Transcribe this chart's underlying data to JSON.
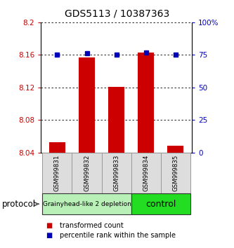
{
  "title": "GDS5113 / 10387363",
  "samples": [
    "GSM999831",
    "GSM999832",
    "GSM999833",
    "GSM999834",
    "GSM999835"
  ],
  "bar_values": [
    8.053,
    8.157,
    8.121,
    8.163,
    8.048
  ],
  "dot_values": [
    75,
    76,
    75,
    77,
    75
  ],
  "ylim_left": [
    8.04,
    8.2
  ],
  "ylim_right": [
    0,
    100
  ],
  "yticks_left": [
    8.04,
    8.08,
    8.12,
    8.16,
    8.2
  ],
  "yticks_right": [
    0,
    25,
    50,
    75,
    100
  ],
  "bar_color": "#cc0000",
  "dot_color": "#0000bb",
  "bar_bottom": 8.04,
  "groups": [
    {
      "label": "Grainyhead-like 2 depletion",
      "start": 0,
      "end": 3,
      "color": "#b8f0b8"
    },
    {
      "label": "control",
      "start": 3,
      "end": 5,
      "color": "#22dd22"
    }
  ],
  "protocol_label": "protocol",
  "legend_bar_label": "transformed count",
  "legend_dot_label": "percentile rank within the sample",
  "tick_label_color_left": "#cc0000",
  "tick_label_color_right": "#0000bb",
  "sample_box_color": "#dddddd",
  "sample_box_edge": "#999999"
}
